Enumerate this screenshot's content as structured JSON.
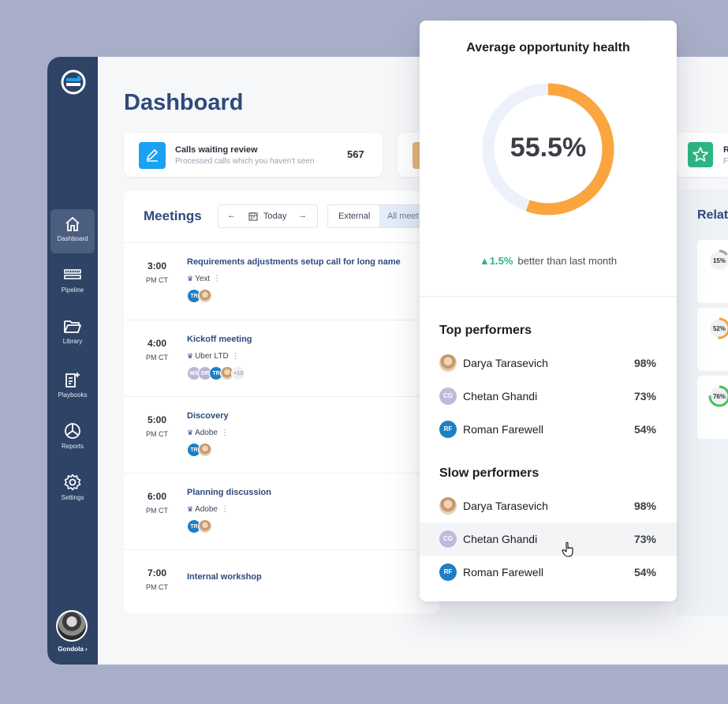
{
  "sidebar": {
    "items": [
      {
        "label": "Dashboard",
        "icon": "home-icon"
      },
      {
        "label": "Pipeline",
        "icon": "pipeline-icon"
      },
      {
        "label": "Library",
        "icon": "folder-icon"
      },
      {
        "label": "Playbooks",
        "icon": "playbook-icon"
      },
      {
        "label": "Reports",
        "icon": "pie-chart-icon"
      },
      {
        "label": "Settings",
        "icon": "gear-icon"
      }
    ],
    "user": "Gondola ›"
  },
  "page": {
    "title": "Dashboard"
  },
  "stats": [
    {
      "title": "Calls waiting review",
      "subtitle": "Processed calls which you haven't seen",
      "value": "567",
      "color": "#1aa1f1"
    },
    {
      "title": "R",
      "subtitle": "F",
      "color": "#2db583"
    }
  ],
  "meetings": {
    "title": "Meetings",
    "date_label": "Today",
    "filters": {
      "external": "External",
      "all": "All meet"
    },
    "rows": [
      {
        "time": "3:00",
        "tz": "PM CT",
        "title": "Requirements adjustments setup call for long name",
        "company": "Yext",
        "avatars": [
          "TR",
          ""
        ]
      },
      {
        "time": "4:00",
        "tz": "PM CT",
        "title": "Kickoff meeting",
        "company": "Uber LTD",
        "avatars": [
          "MS",
          "DR",
          "TR",
          ""
        ],
        "more": "+13"
      },
      {
        "time": "5:00",
        "tz": "PM CT",
        "title": "Discovery",
        "company": "Adobe",
        "avatars": [
          "TR",
          ""
        ]
      },
      {
        "time": "6:00",
        "tz": "PM CT",
        "title": "Planning discussion",
        "company": "Adobe",
        "avatars": [
          "TR",
          ""
        ]
      },
      {
        "time": "7:00",
        "tz": "PM CT",
        "title": "Internal workshop"
      }
    ]
  },
  "related": {
    "title": "Relat",
    "items": [
      {
        "pct": "15%",
        "value": 15,
        "color": "#9aa1ad"
      },
      {
        "pct": "52%",
        "value": 52,
        "color": "#f5a03a"
      },
      {
        "pct": "76%",
        "value": 76,
        "color": "#4cbf5a"
      }
    ]
  },
  "health": {
    "title": "Average opportunity health",
    "value_label": "55.5%",
    "value": 55.5,
    "colors": {
      "fill": "#fba53e",
      "track": "#ecf1fa"
    },
    "trend_value": "▲1.5%",
    "trend_text": "better than last month",
    "top_title": "Top performers",
    "top": [
      {
        "name": "Darya Tarasevich",
        "pct": "98%",
        "initials": ""
      },
      {
        "name": "Chetan Ghandi",
        "pct": "73%",
        "initials": "CG"
      },
      {
        "name": "Roman Farewell",
        "pct": "54%",
        "initials": "RF"
      }
    ],
    "slow_title": "Slow performers",
    "slow": [
      {
        "name": "Darya Tarasevich",
        "pct": "98%",
        "initials": ""
      },
      {
        "name": "Chetan Ghandi",
        "pct": "73%",
        "initials": "CG"
      },
      {
        "name": "Roman Farewell",
        "pct": "54%",
        "initials": "RF"
      }
    ]
  }
}
